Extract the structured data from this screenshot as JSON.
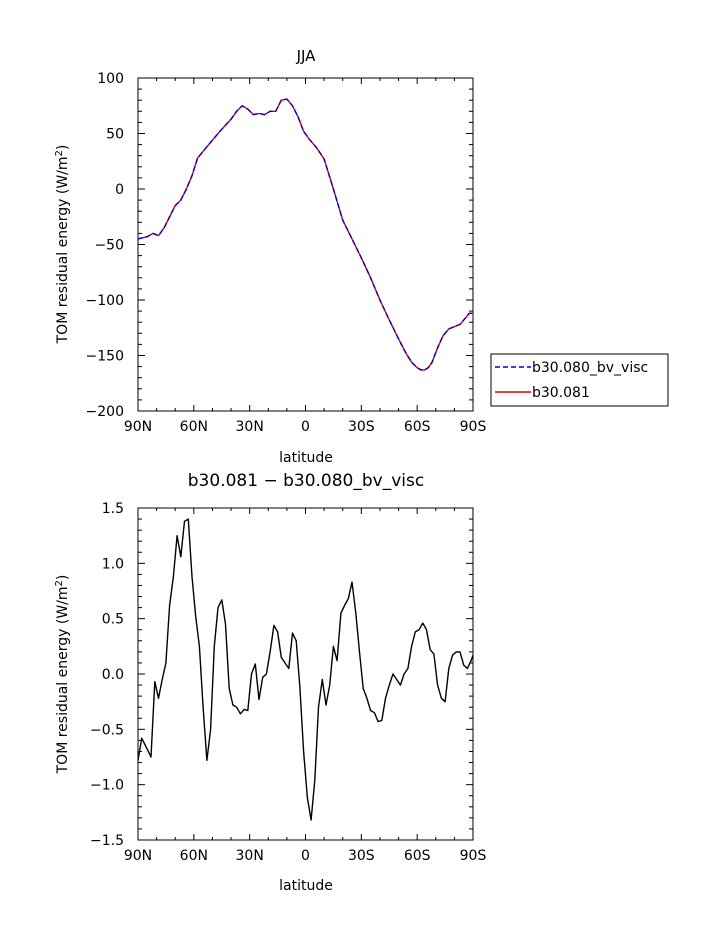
{
  "chart_data": [
    {
      "type": "line",
      "title": "JJA",
      "xlabel": "latitude",
      "ylabel": "TOM residual energy (W/m²)",
      "ylabel_main": "TOM residual energy (W/m",
      "ylabel_sup": "2",
      "ylabel_close": ")",
      "xlim": [
        -90,
        90
      ],
      "ylim": [
        -200,
        100
      ],
      "xticks": [
        -90,
        -60,
        -30,
        0,
        30,
        60,
        90
      ],
      "xticklabels": [
        "90N",
        "60N",
        "30N",
        "0",
        "30S",
        "60S",
        "90S"
      ],
      "yticks": [
        -200,
        -150,
        -100,
        -50,
        0,
        50,
        100
      ],
      "yticklabels": [
        "−200",
        "−150",
        "−100",
        "−50",
        "0",
        "50",
        "100"
      ],
      "grid": false,
      "legend_position": "right",
      "series": [
        {
          "name": "b30.080_bv_visc",
          "color": "#0000cc",
          "dash": true,
          "x": [
            -90,
            -85,
            -82,
            -79,
            -76,
            -73,
            -70,
            -67,
            -64,
            -61,
            -58,
            -52,
            -46,
            -40,
            -37,
            -34,
            -31,
            -28,
            -25,
            -22,
            -19,
            -16,
            -13,
            -10,
            -7,
            -4,
            -1,
            2,
            6,
            10,
            15,
            20,
            25,
            30,
            35,
            40,
            45,
            50,
            54,
            57,
            60,
            62,
            64,
            66,
            68,
            71,
            74,
            77,
            80,
            83,
            86,
            88,
            90
          ],
          "y": [
            -45,
            -43,
            -40,
            -42,
            -35,
            -25,
            -15,
            -10,
            0,
            12,
            28,
            40,
            52,
            63,
            70,
            75,
            72,
            67,
            68,
            67,
            70,
            70,
            80,
            81,
            75,
            65,
            52,
            45,
            37,
            27,
            0,
            -28,
            -45,
            -62,
            -80,
            -100,
            -118,
            -135,
            -148,
            -156,
            -161,
            -163,
            -163,
            -161,
            -156,
            -143,
            -132,
            -126,
            -124,
            -122,
            -116,
            -112,
            -112
          ]
        },
        {
          "name": "b30.081",
          "color": "#dd0000",
          "dash": false,
          "x": [
            -90,
            -85,
            -82,
            -79,
            -76,
            -73,
            -70,
            -67,
            -64,
            -61,
            -58,
            -52,
            -46,
            -40,
            -37,
            -34,
            -31,
            -28,
            -25,
            -22,
            -19,
            -16,
            -13,
            -10,
            -7,
            -4,
            -1,
            2,
            6,
            10,
            15,
            20,
            25,
            30,
            35,
            40,
            45,
            50,
            54,
            57,
            60,
            62,
            64,
            66,
            68,
            71,
            74,
            77,
            80,
            83,
            86,
            88,
            90
          ],
          "y": [
            -45,
            -43,
            -40,
            -42,
            -35,
            -25,
            -15,
            -10,
            0,
            12,
            28,
            40,
            52,
            63,
            70,
            75,
            72,
            67,
            68,
            67,
            70,
            70,
            80,
            81,
            75,
            65,
            52,
            45,
            37,
            27,
            0,
            -28,
            -45,
            -62,
            -80,
            -100,
            -118,
            -135,
            -148,
            -156,
            -161,
            -163,
            -163,
            -161,
            -156,
            -143,
            -132,
            -126,
            -124,
            -122,
            -116,
            -112,
            -112
          ]
        }
      ]
    },
    {
      "type": "line",
      "title": "b30.081 − b30.080_bv_visc",
      "xlabel": "latitude",
      "ylabel": "TOM residual energy (W/m²)",
      "ylabel_main": "TOM residual energy (W/m",
      "ylabel_sup": "2",
      "ylabel_close": ")",
      "xlim": [
        -90,
        90
      ],
      "ylim": [
        -1.5,
        1.5
      ],
      "xticks": [
        -90,
        -60,
        -30,
        0,
        30,
        60,
        90
      ],
      "xticklabels": [
        "90N",
        "60N",
        "30N",
        "0",
        "30S",
        "60S",
        "90S"
      ],
      "yticks": [
        -1.5,
        -1.0,
        -0.5,
        0.0,
        0.5,
        1.0,
        1.5
      ],
      "yticklabels": [
        "−1.5",
        "−1.0",
        "−0.5",
        "0.0",
        "0.5",
        "1.0",
        "1.5"
      ],
      "grid": false,
      "series": [
        {
          "color": "#000000",
          "dash": false,
          "x": [
            -90,
            -88,
            -85,
            -83,
            -81,
            -79,
            -77,
            -75,
            -73,
            -71,
            -69,
            -67,
            -65,
            -63,
            -61,
            -59,
            -57,
            -55,
            -53,
            -51,
            -49,
            -47,
            -45,
            -43,
            -41,
            -39,
            -37,
            -35,
            -33,
            -31,
            -29,
            -27,
            -25,
            -23,
            -21,
            -19,
            -17,
            -15,
            -13,
            -11,
            -9,
            -7,
            -5,
            -3,
            -1,
            1,
            3,
            5,
            7,
            9,
            11,
            13,
            15,
            17,
            19,
            21,
            23,
            25,
            27,
            29,
            31,
            33,
            35,
            37,
            39,
            41,
            43,
            45,
            47,
            49,
            51,
            53,
            55,
            57,
            59,
            61,
            63,
            65,
            67,
            69,
            71,
            73,
            75,
            77,
            79,
            81,
            83,
            85,
            87,
            89,
            90
          ],
          "y": [
            -0.78,
            -0.58,
            -0.68,
            -0.75,
            -0.07,
            -0.22,
            -0.05,
            0.1,
            0.62,
            0.88,
            1.25,
            1.06,
            1.38,
            1.4,
            0.88,
            0.52,
            0.25,
            -0.3,
            -0.78,
            -0.5,
            0.25,
            0.6,
            0.67,
            0.45,
            -0.13,
            -0.28,
            -0.3,
            -0.36,
            -0.32,
            -0.33,
            0.0,
            0.09,
            -0.23,
            -0.03,
            0.0,
            0.2,
            0.44,
            0.38,
            0.15,
            0.1,
            0.05,
            0.37,
            0.3,
            -0.12,
            -0.7,
            -1.12,
            -1.32,
            -0.96,
            -0.3,
            -0.05,
            -0.28,
            -0.1,
            0.25,
            0.12,
            0.55,
            0.62,
            0.68,
            0.83,
            0.55,
            0.2,
            -0.13,
            -0.22,
            -0.33,
            -0.35,
            -0.43,
            -0.42,
            -0.22,
            -0.1,
            0.0,
            -0.05,
            -0.1,
            0.0,
            0.05,
            0.25,
            0.38,
            0.4,
            0.46,
            0.4,
            0.22,
            0.18,
            -0.1,
            -0.22,
            -0.25,
            0.05,
            0.17,
            0.2,
            0.2,
            0.08,
            0.05,
            0.12,
            0.17
          ]
        }
      ]
    }
  ]
}
